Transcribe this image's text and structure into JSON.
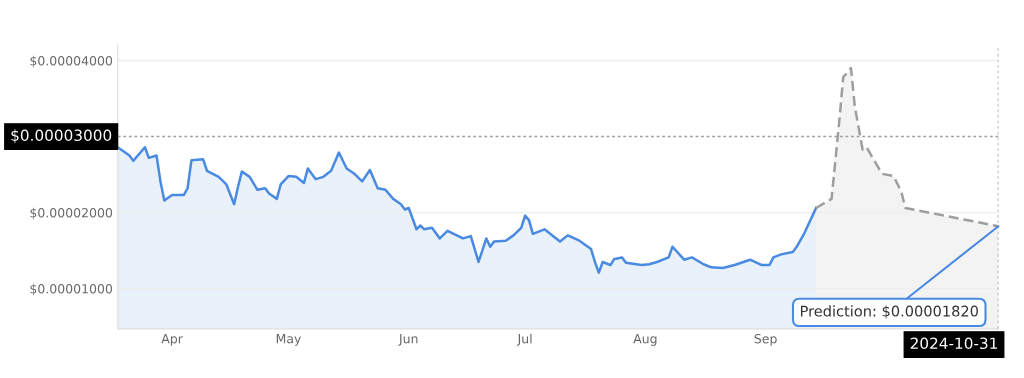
{
  "chart_data": {
    "type": "area",
    "series": [
      {
        "color": "#4a8ae0",
        "line_style": "solid",
        "x": [
          "2024-03-18",
          "2024-03-21",
          "2024-03-22",
          "2024-03-25",
          "2024-03-26",
          "2024-03-28",
          "2024-03-29",
          "2024-03-30",
          "2024-04-01",
          "2024-04-04",
          "2024-04-05",
          "2024-04-06",
          "2024-04-09",
          "2024-04-10",
          "2024-04-13",
          "2024-04-15",
          "2024-04-17",
          "2024-04-18",
          "2024-04-19",
          "2024-04-21",
          "2024-04-23",
          "2024-04-25",
          "2024-04-26",
          "2024-04-28",
          "2024-04-29",
          "2024-05-01",
          "2024-05-03",
          "2024-05-05",
          "2024-05-06",
          "2024-05-08",
          "2024-05-10",
          "2024-05-12",
          "2024-05-14",
          "2024-05-16",
          "2024-05-18",
          "2024-05-20",
          "2024-05-22",
          "2024-05-24",
          "2024-05-26",
          "2024-05-28",
          "2024-05-30",
          "2024-05-31",
          "2024-06-01",
          "2024-06-03",
          "2024-06-04",
          "2024-06-05",
          "2024-06-07",
          "2024-06-09",
          "2024-06-11",
          "2024-06-15",
          "2024-06-17",
          "2024-06-19",
          "2024-06-21",
          "2024-06-22",
          "2024-06-23",
          "2024-06-26",
          "2024-06-28",
          "2024-06-30",
          "2024-07-01",
          "2024-07-02",
          "2024-07-03",
          "2024-07-06",
          "2024-07-09",
          "2024-07-10",
          "2024-07-12",
          "2024-07-15",
          "2024-07-18",
          "2024-07-19",
          "2024-07-20",
          "2024-07-21",
          "2024-07-23",
          "2024-07-24",
          "2024-07-26",
          "2024-07-27",
          "2024-07-31",
          "2024-08-02",
          "2024-08-04",
          "2024-08-07",
          "2024-08-08",
          "2024-08-11",
          "2024-08-13",
          "2024-08-16",
          "2024-08-18",
          "2024-08-21",
          "2024-08-24",
          "2024-08-28",
          "2024-08-31",
          "2024-09-02",
          "2024-09-03",
          "2024-09-05",
          "2024-09-08",
          "2024-09-09",
          "2024-09-11",
          "2024-09-14"
        ],
        "values": [
          2.86e-05,
          2.75e-05,
          2.68e-05,
          2.86e-05,
          2.72e-05,
          2.75e-05,
          2.41e-05,
          2.16e-05,
          2.23e-05,
          2.23e-05,
          2.32e-05,
          2.69e-05,
          2.7e-05,
          2.55e-05,
          2.47e-05,
          2.37e-05,
          2.11e-05,
          2.34e-05,
          2.54e-05,
          2.47e-05,
          2.3e-05,
          2.32e-05,
          2.25e-05,
          2.18e-05,
          2.37e-05,
          2.48e-05,
          2.47e-05,
          2.39e-05,
          2.58e-05,
          2.44e-05,
          2.47e-05,
          2.55e-05,
          2.79e-05,
          2.58e-05,
          2.51e-05,
          2.41e-05,
          2.56e-05,
          2.32e-05,
          2.3e-05,
          2.18e-05,
          2.11e-05,
          2.04e-05,
          2.06e-05,
          1.78e-05,
          1.83e-05,
          1.78e-05,
          1.8e-05,
          1.66e-05,
          1.76e-05,
          1.66e-05,
          1.69e-05,
          1.35e-05,
          1.66e-05,
          1.55e-05,
          1.62e-05,
          1.63e-05,
          1.7e-05,
          1.8e-05,
          1.96e-05,
          1.9e-05,
          1.72e-05,
          1.78e-05,
          1.66e-05,
          1.62e-05,
          1.7e-05,
          1.63e-05,
          1.52e-05,
          1.35e-05,
          1.21e-05,
          1.35e-05,
          1.31e-05,
          1.39e-05,
          1.41e-05,
          1.34e-05,
          1.31e-05,
          1.32e-05,
          1.35e-05,
          1.41e-05,
          1.55e-05,
          1.38e-05,
          1.41e-05,
          1.32e-05,
          1.28e-05,
          1.27e-05,
          1.31e-05,
          1.38e-05,
          1.31e-05,
          1.31e-05,
          1.41e-05,
          1.45e-05,
          1.48e-05,
          1.55e-05,
          1.73e-05,
          2.06e-05
        ]
      },
      {
        "color": "#9e9e9e",
        "line_style": "dashed",
        "x": [
          "2024-09-14",
          "2024-09-18",
          "2024-09-20",
          "2024-09-21",
          "2024-09-23",
          "2024-09-24",
          "2024-09-26",
          "2024-09-27",
          "2024-10-01",
          "2024-10-04",
          "2024-10-06",
          "2024-10-07",
          "2024-10-31"
        ],
        "values": [
          2.06e-05,
          2.18e-05,
          3.21e-05,
          3.78e-05,
          3.9e-05,
          3.39e-05,
          2.83e-05,
          2.86e-05,
          2.51e-05,
          2.48e-05,
          2.27e-05,
          2.06e-05,
          1.82e-05
        ]
      }
    ],
    "xlim": [
      "2024-03-18",
      "2024-10-31"
    ],
    "xticks": [
      {
        "value": "2024-04-01",
        "label": "Apr"
      },
      {
        "value": "2024-05-01",
        "label": "May"
      },
      {
        "value": "2024-06-01",
        "label": "Jun"
      },
      {
        "value": "2024-07-01",
        "label": "Jul"
      },
      {
        "value": "2024-08-01",
        "label": "Aug"
      },
      {
        "value": "2024-09-01",
        "label": "Sep"
      }
    ],
    "ylim": [
      4.7e-06,
      4.2e-05
    ],
    "yticks": [
      {
        "value": 1e-05,
        "label": "$0.00001000"
      },
      {
        "value": 2e-05,
        "label": "$0.00002000"
      },
      {
        "value": 4e-05,
        "label": "$0.00004000"
      }
    ],
    "grid": "y",
    "legend": false,
    "ref_lines": [
      {
        "axis": "y",
        "value": 3e-05,
        "label": "$0.00003000",
        "color": "#9e9e9e",
        "line_style": "dotted"
      },
      {
        "axis": "x",
        "value": "2024-10-31",
        "label": "2024-10-31",
        "color": "#9e9e9e",
        "line_style": "dotted"
      }
    ],
    "annotations": [
      {
        "text": "Prediction: $0.00001820",
        "x": "2024-10-31",
        "y": 1.82e-05
      }
    ]
  }
}
